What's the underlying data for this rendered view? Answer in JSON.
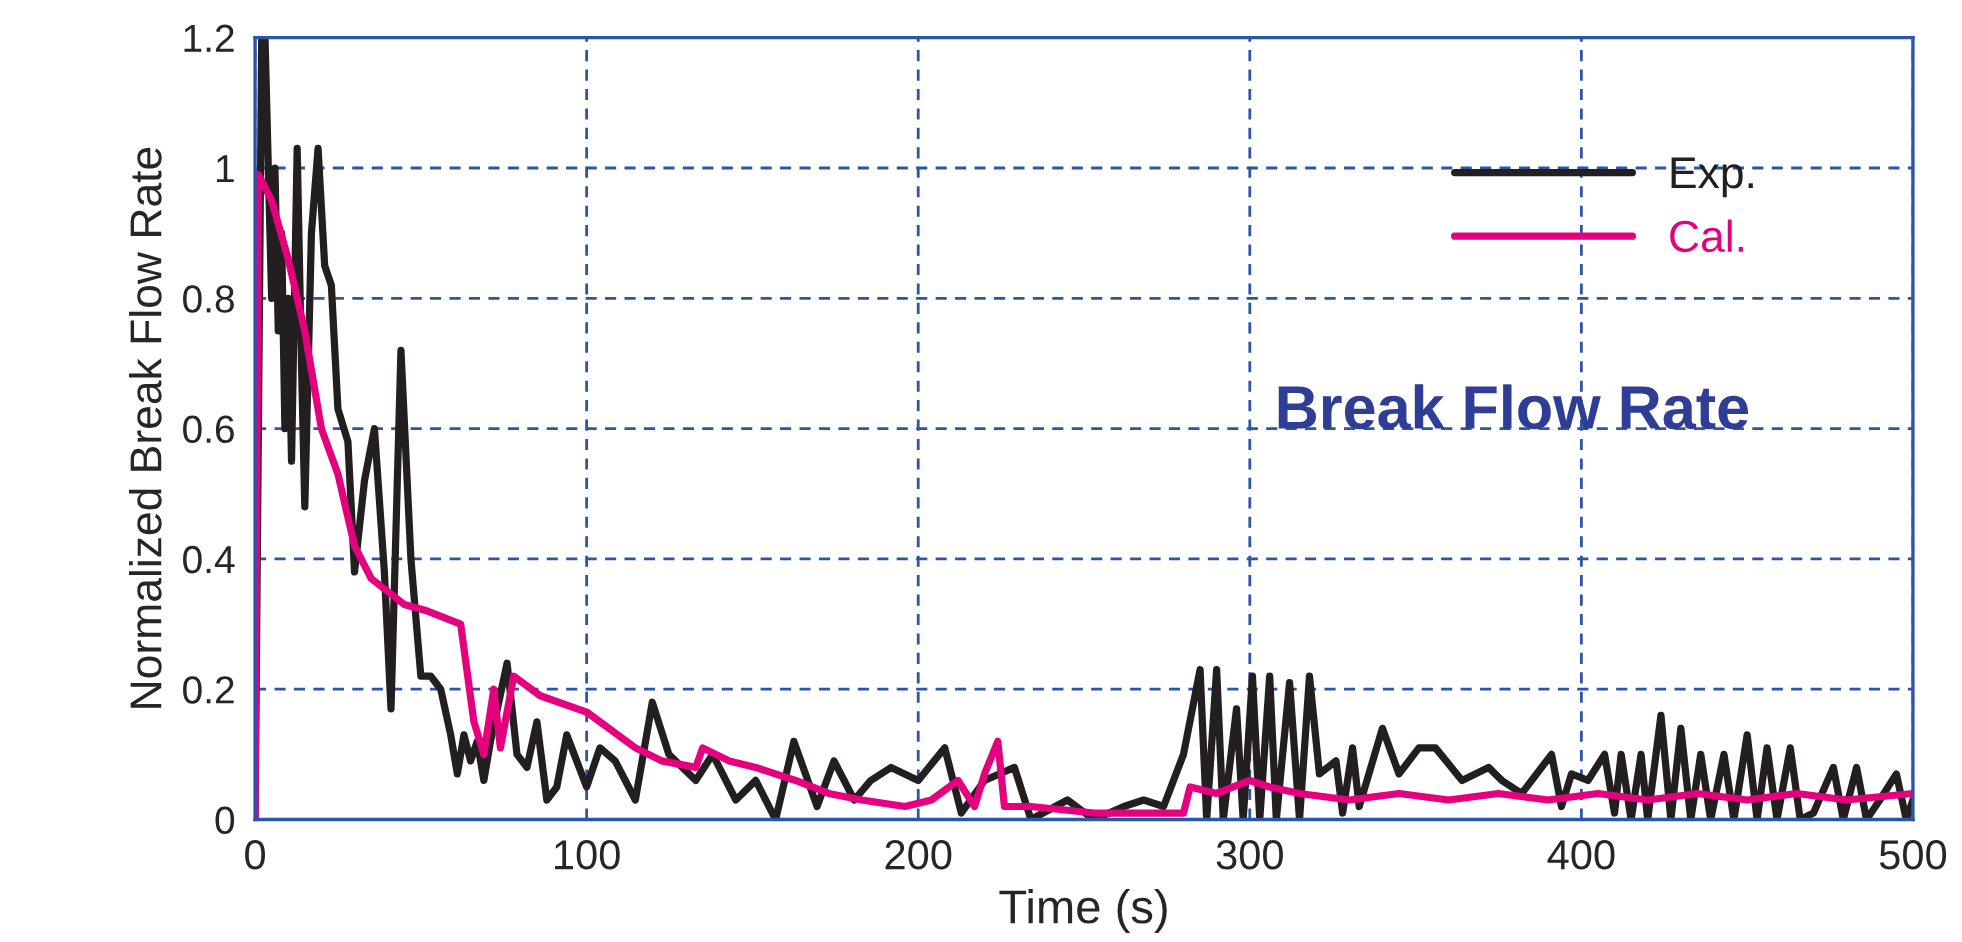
{
  "chart_data": {
    "type": "line",
    "xlabel": "Time (s)",
    "ylabel": "Normalized Break Flow Rate",
    "annotations": [
      "Break Flow Rate"
    ],
    "xlim": [
      0,
      500
    ],
    "xticks": [
      0,
      100,
      200,
      300,
      400,
      500
    ],
    "ylim": [
      0,
      1.2
    ],
    "yticks": [
      0,
      0.2,
      0.4,
      0.6,
      0.8,
      1,
      1.2
    ],
    "grid": true,
    "legend": "top right",
    "line_style": "solid",
    "series": [
      {
        "name": "Exp.",
        "color": "#231f20",
        "x": [
          0,
          2,
          3,
          5,
          6,
          7,
          8,
          9,
          10,
          11,
          12.7,
          14,
          15,
          17,
          19,
          21,
          23,
          25,
          28,
          30,
          33,
          36,
          39,
          41,
          44,
          47,
          50,
          53,
          56,
          59,
          61,
          63,
          65,
          67,
          69,
          71,
          76,
          79,
          82,
          85,
          88,
          91,
          94,
          97,
          100,
          104,
          108.6,
          114.7,
          119.8,
          124.8,
          132.9,
          138,
          145,
          151,
          157,
          162.5,
          169.5,
          174.6,
          180.7,
          185.7,
          191.8,
          200,
          208,
          213,
          220,
          229,
          234,
          245,
          253,
          262,
          268,
          274,
          280,
          285,
          287,
          290,
          292,
          296,
          298,
          300.8,
          303,
          306,
          308,
          312,
          315,
          318,
          321,
          326,
          328,
          331,
          333,
          340,
          345,
          351,
          356,
          364,
          372,
          376,
          382,
          391,
          394,
          397,
          402,
          407,
          410,
          412,
          415,
          418,
          420,
          424,
          427,
          430,
          433,
          436,
          439,
          443,
          446,
          450,
          453,
          456,
          459,
          463,
          466,
          470,
          476,
          479,
          483,
          486,
          490,
          495,
          498,
          500
        ],
        "values": [
          0,
          1.2,
          1.2,
          0.8,
          1.0,
          0.75,
          0.9,
          0.6,
          0.8,
          0.55,
          1.03,
          0.7,
          0.48,
          0.9,
          1.03,
          0.85,
          0.82,
          0.63,
          0.58,
          0.38,
          0.52,
          0.6,
          0.38,
          0.17,
          0.72,
          0.4,
          0.22,
          0.22,
          0.2,
          0.13,
          0.07,
          0.13,
          0.09,
          0.12,
          0.06,
          0.12,
          0.24,
          0.1,
          0.08,
          0.15,
          0.03,
          0.05,
          0.13,
          0.09,
          0.05,
          0.11,
          0.09,
          0.03,
          0.18,
          0.1,
          0.06,
          0.1,
          0.03,
          0.06,
          0.0,
          0.12,
          0.02,
          0.09,
          0.03,
          0.06,
          0.08,
          0.06,
          0.11,
          0.01,
          0.06,
          0.08,
          0.0,
          0.03,
          0.0,
          0.02,
          0.03,
          0.02,
          0.1,
          0.23,
          0.0,
          0.23,
          0.0,
          0.17,
          0.0,
          0.22,
          0.0,
          0.22,
          0.0,
          0.21,
          0.0,
          0.22,
          0.07,
          0.09,
          0.01,
          0.11,
          0.02,
          0.14,
          0.07,
          0.11,
          0.11,
          0.06,
          0.08,
          0.06,
          0.04,
          0.1,
          0.02,
          0.07,
          0.06,
          0.1,
          0.01,
          0.1,
          0.0,
          0.1,
          0.0,
          0.16,
          0.0,
          0.14,
          0.0,
          0.1,
          0.0,
          0.1,
          0.0,
          0.13,
          0.0,
          0.11,
          0.0,
          0.11,
          0.0,
          0.01,
          0.08,
          0.0,
          0.08,
          0.0,
          0.03,
          0.07,
          0.0,
          0.03
        ]
      },
      {
        "name": "Cal.",
        "color": "#e5007e",
        "x": [
          0,
          1,
          5,
          10,
          15,
          20,
          25,
          30,
          35,
          40,
          45,
          52,
          57,
          62,
          66,
          69,
          72,
          74,
          78,
          86,
          100,
          114.7,
          122.7,
          132.9,
          135,
          143,
          151,
          163,
          173,
          183,
          196,
          204,
          212,
          217,
          220,
          224,
          226,
          234,
          253,
          280,
          282,
          290,
          300,
          306,
          315,
          330,
          345,
          360,
          375,
          390,
          405,
          420,
          435,
          450,
          465,
          480,
          500
        ],
        "values": [
          0,
          0.99,
          0.95,
          0.86,
          0.75,
          0.6,
          0.53,
          0.42,
          0.37,
          0.35,
          0.33,
          0.32,
          0.31,
          0.3,
          0.15,
          0.1,
          0.2,
          0.11,
          0.22,
          0.19,
          0.165,
          0.11,
          0.09,
          0.08,
          0.11,
          0.09,
          0.08,
          0.06,
          0.04,
          0.03,
          0.02,
          0.03,
          0.06,
          0.02,
          0.07,
          0.12,
          0.02,
          0.02,
          0.01,
          0.01,
          0.05,
          0.04,
          0.06,
          0.05,
          0.04,
          0.03,
          0.04,
          0.03,
          0.04,
          0.03,
          0.04,
          0.03,
          0.04,
          0.03,
          0.04,
          0.03,
          0.04
        ]
      }
    ]
  }
}
